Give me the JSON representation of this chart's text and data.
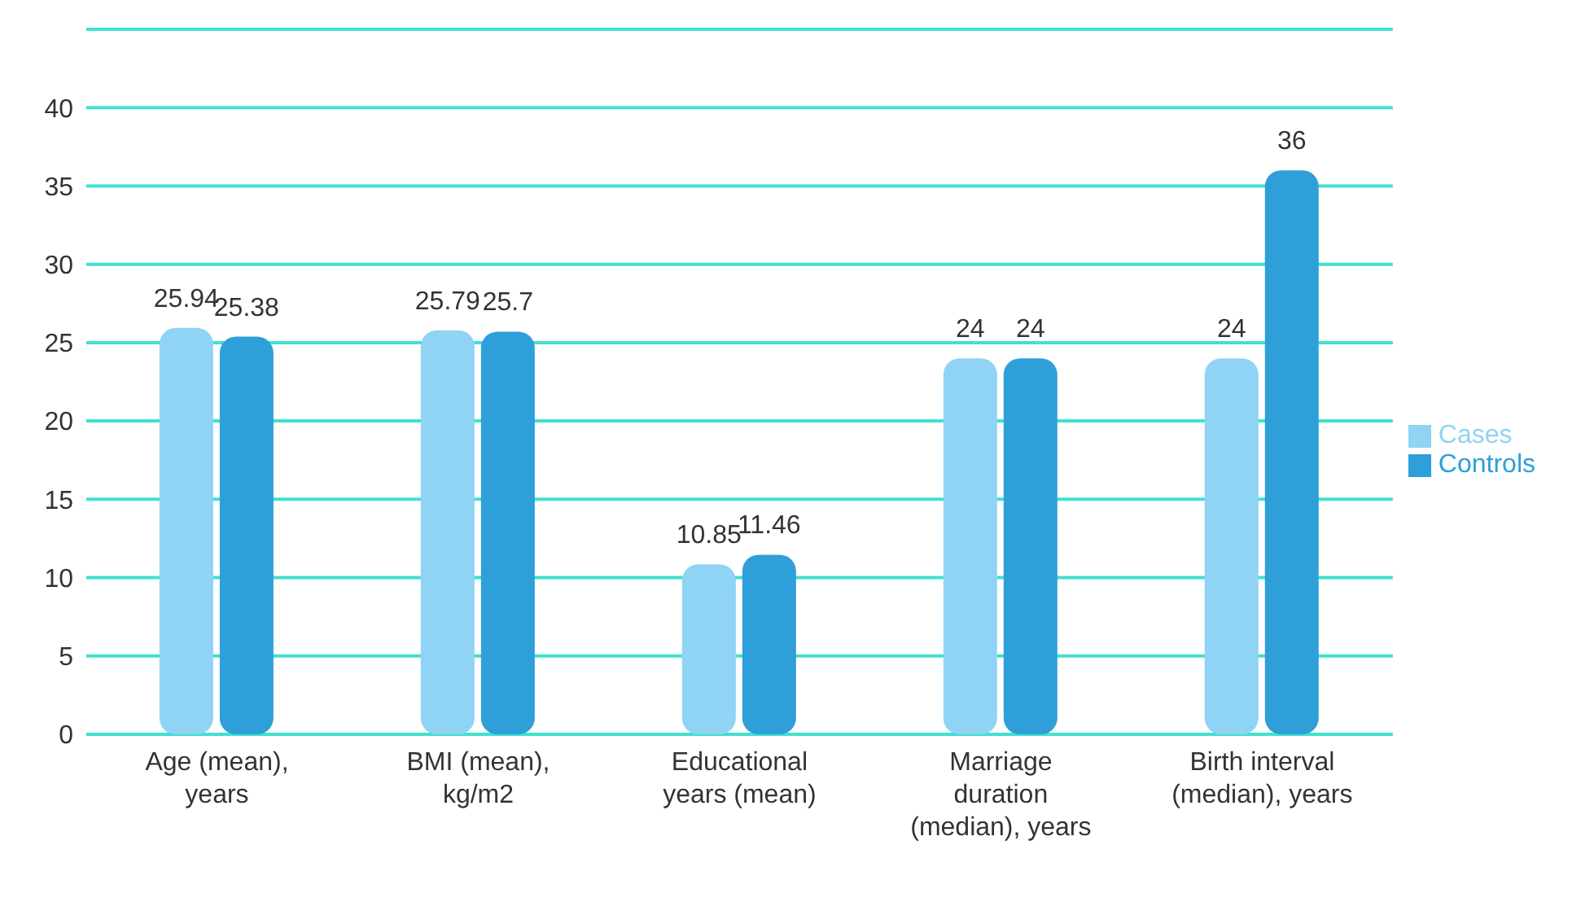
{
  "chart_data": {
    "type": "bar",
    "categories": [
      "Age (mean), years",
      "BMI (mean), kg/m2",
      "Educational years (mean)",
      "Marriage duration (median), years",
      "Birth interval (median), years"
    ],
    "series": [
      {
        "name": "Cases",
        "color": "#8fd3f5",
        "values": [
          25.94,
          25.79,
          10.85,
          24,
          24
        ]
      },
      {
        "name": "Controls",
        "color": "#2e9fd8",
        "values": [
          25.38,
          25.7,
          11.46,
          24,
          36
        ]
      }
    ],
    "ylim": [
      0,
      45
    ],
    "yticks": [
      0,
      5,
      10,
      15,
      20,
      25,
      30,
      35,
      40,
      {
        "value": 45,
        "label": null
      }
    ],
    "grid": "y",
    "legend": "right",
    "data_labels": true
  }
}
